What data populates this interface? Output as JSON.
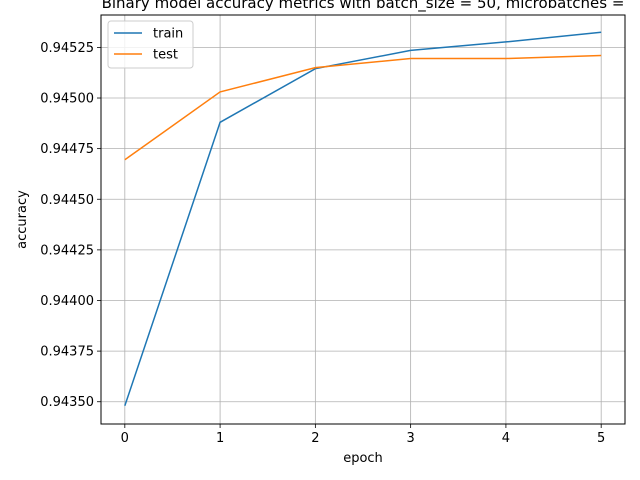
{
  "chart_data": {
    "type": "line",
    "title": "Binary model accuracy metrics with batch_size = 50, microbatches = ",
    "xlabel": "epoch",
    "ylabel": "accuracy",
    "x": [
      0,
      1,
      2,
      3,
      4,
      5
    ],
    "xlim": [
      -0.25,
      5.25
    ],
    "ylim": [
      0.94339,
      0.94541
    ],
    "xticks": [
      0,
      1,
      2,
      3,
      4,
      5
    ],
    "xtick_labels": [
      "0",
      "1",
      "2",
      "3",
      "4",
      "5"
    ],
    "yticks": [
      0.9435,
      0.94375,
      0.944,
      0.94425,
      0.9445,
      0.94475,
      0.945,
      0.94525
    ],
    "ytick_labels": [
      "0.94350",
      "0.94375",
      "0.94400",
      "0.94425",
      "0.94450",
      "0.94475",
      "0.94500",
      "0.94525"
    ],
    "grid": true,
    "legend_position": "upper-left",
    "series": [
      {
        "name": "train",
        "color": "#1f77b4",
        "values": [
          0.94348,
          0.94488,
          0.945145,
          0.945235,
          0.945277,
          0.945325
        ]
      },
      {
        "name": "test",
        "color": "#ff7f0e",
        "values": [
          0.944695,
          0.94503,
          0.94515,
          0.945195,
          0.945195,
          0.94521
        ]
      }
    ]
  }
}
